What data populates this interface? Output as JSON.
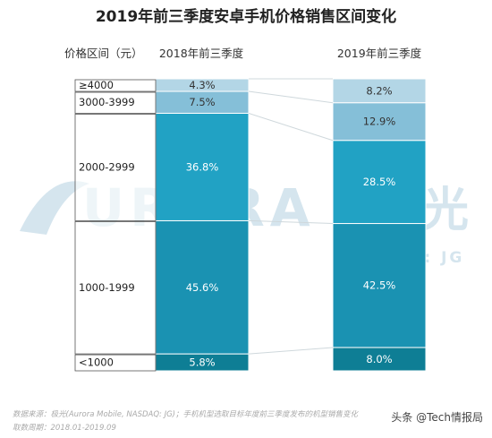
{
  "title": "2019年前三季度安卓手机价格销售区间变化",
  "header": {
    "category_label": "价格区间（元）",
    "col1": "2018年前三季度",
    "col2": "2019年前三季度"
  },
  "colors": {
    "<1000": "#0e7e95",
    "1000-1999": "#1a92b2",
    "2000-2999": "#21a2c4",
    "3000-3999": "#85bfd8",
    "≥4000": "#b3d6e6",
    "watermark": "#d5e5ee"
  },
  "watermark": {
    "brand": "URORA",
    "brand_cn": "极光",
    "ticker": "NASDAQ: JG"
  },
  "chart_data": {
    "type": "bar",
    "stacked": true,
    "normalized": true,
    "categories": [
      "2018年前三季度",
      "2019年前三季度"
    ],
    "series": [
      {
        "name": "<1000",
        "values": [
          5.8,
          8.0
        ],
        "labels": [
          "5.8%",
          "8.0%"
        ]
      },
      {
        "name": "1000-1999",
        "values": [
          45.6,
          42.5
        ],
        "labels": [
          "45.6%",
          "42.5%"
        ]
      },
      {
        "name": "2000-2999",
        "values": [
          36.8,
          28.5
        ],
        "labels": [
          "36.8%",
          "28.5%"
        ]
      },
      {
        "name": "3000-3999",
        "values": [
          7.5,
          12.9
        ],
        "labels": [
          "7.5%",
          "12.9%"
        ]
      },
      {
        "name": "≥4000",
        "values": [
          4.3,
          8.2
        ],
        "labels": [
          "4.3%",
          "8.2%"
        ]
      }
    ],
    "ylim": [
      0,
      100
    ]
  },
  "footer": {
    "source": "数据来源：极光(Aurora Mobile, NASDAQ: JG)；手机机型选取目标年度前三季度发布的机型销售变化",
    "period": "取数周期：2018.01-2019.09",
    "credit": "头条 @Tech情报局"
  }
}
